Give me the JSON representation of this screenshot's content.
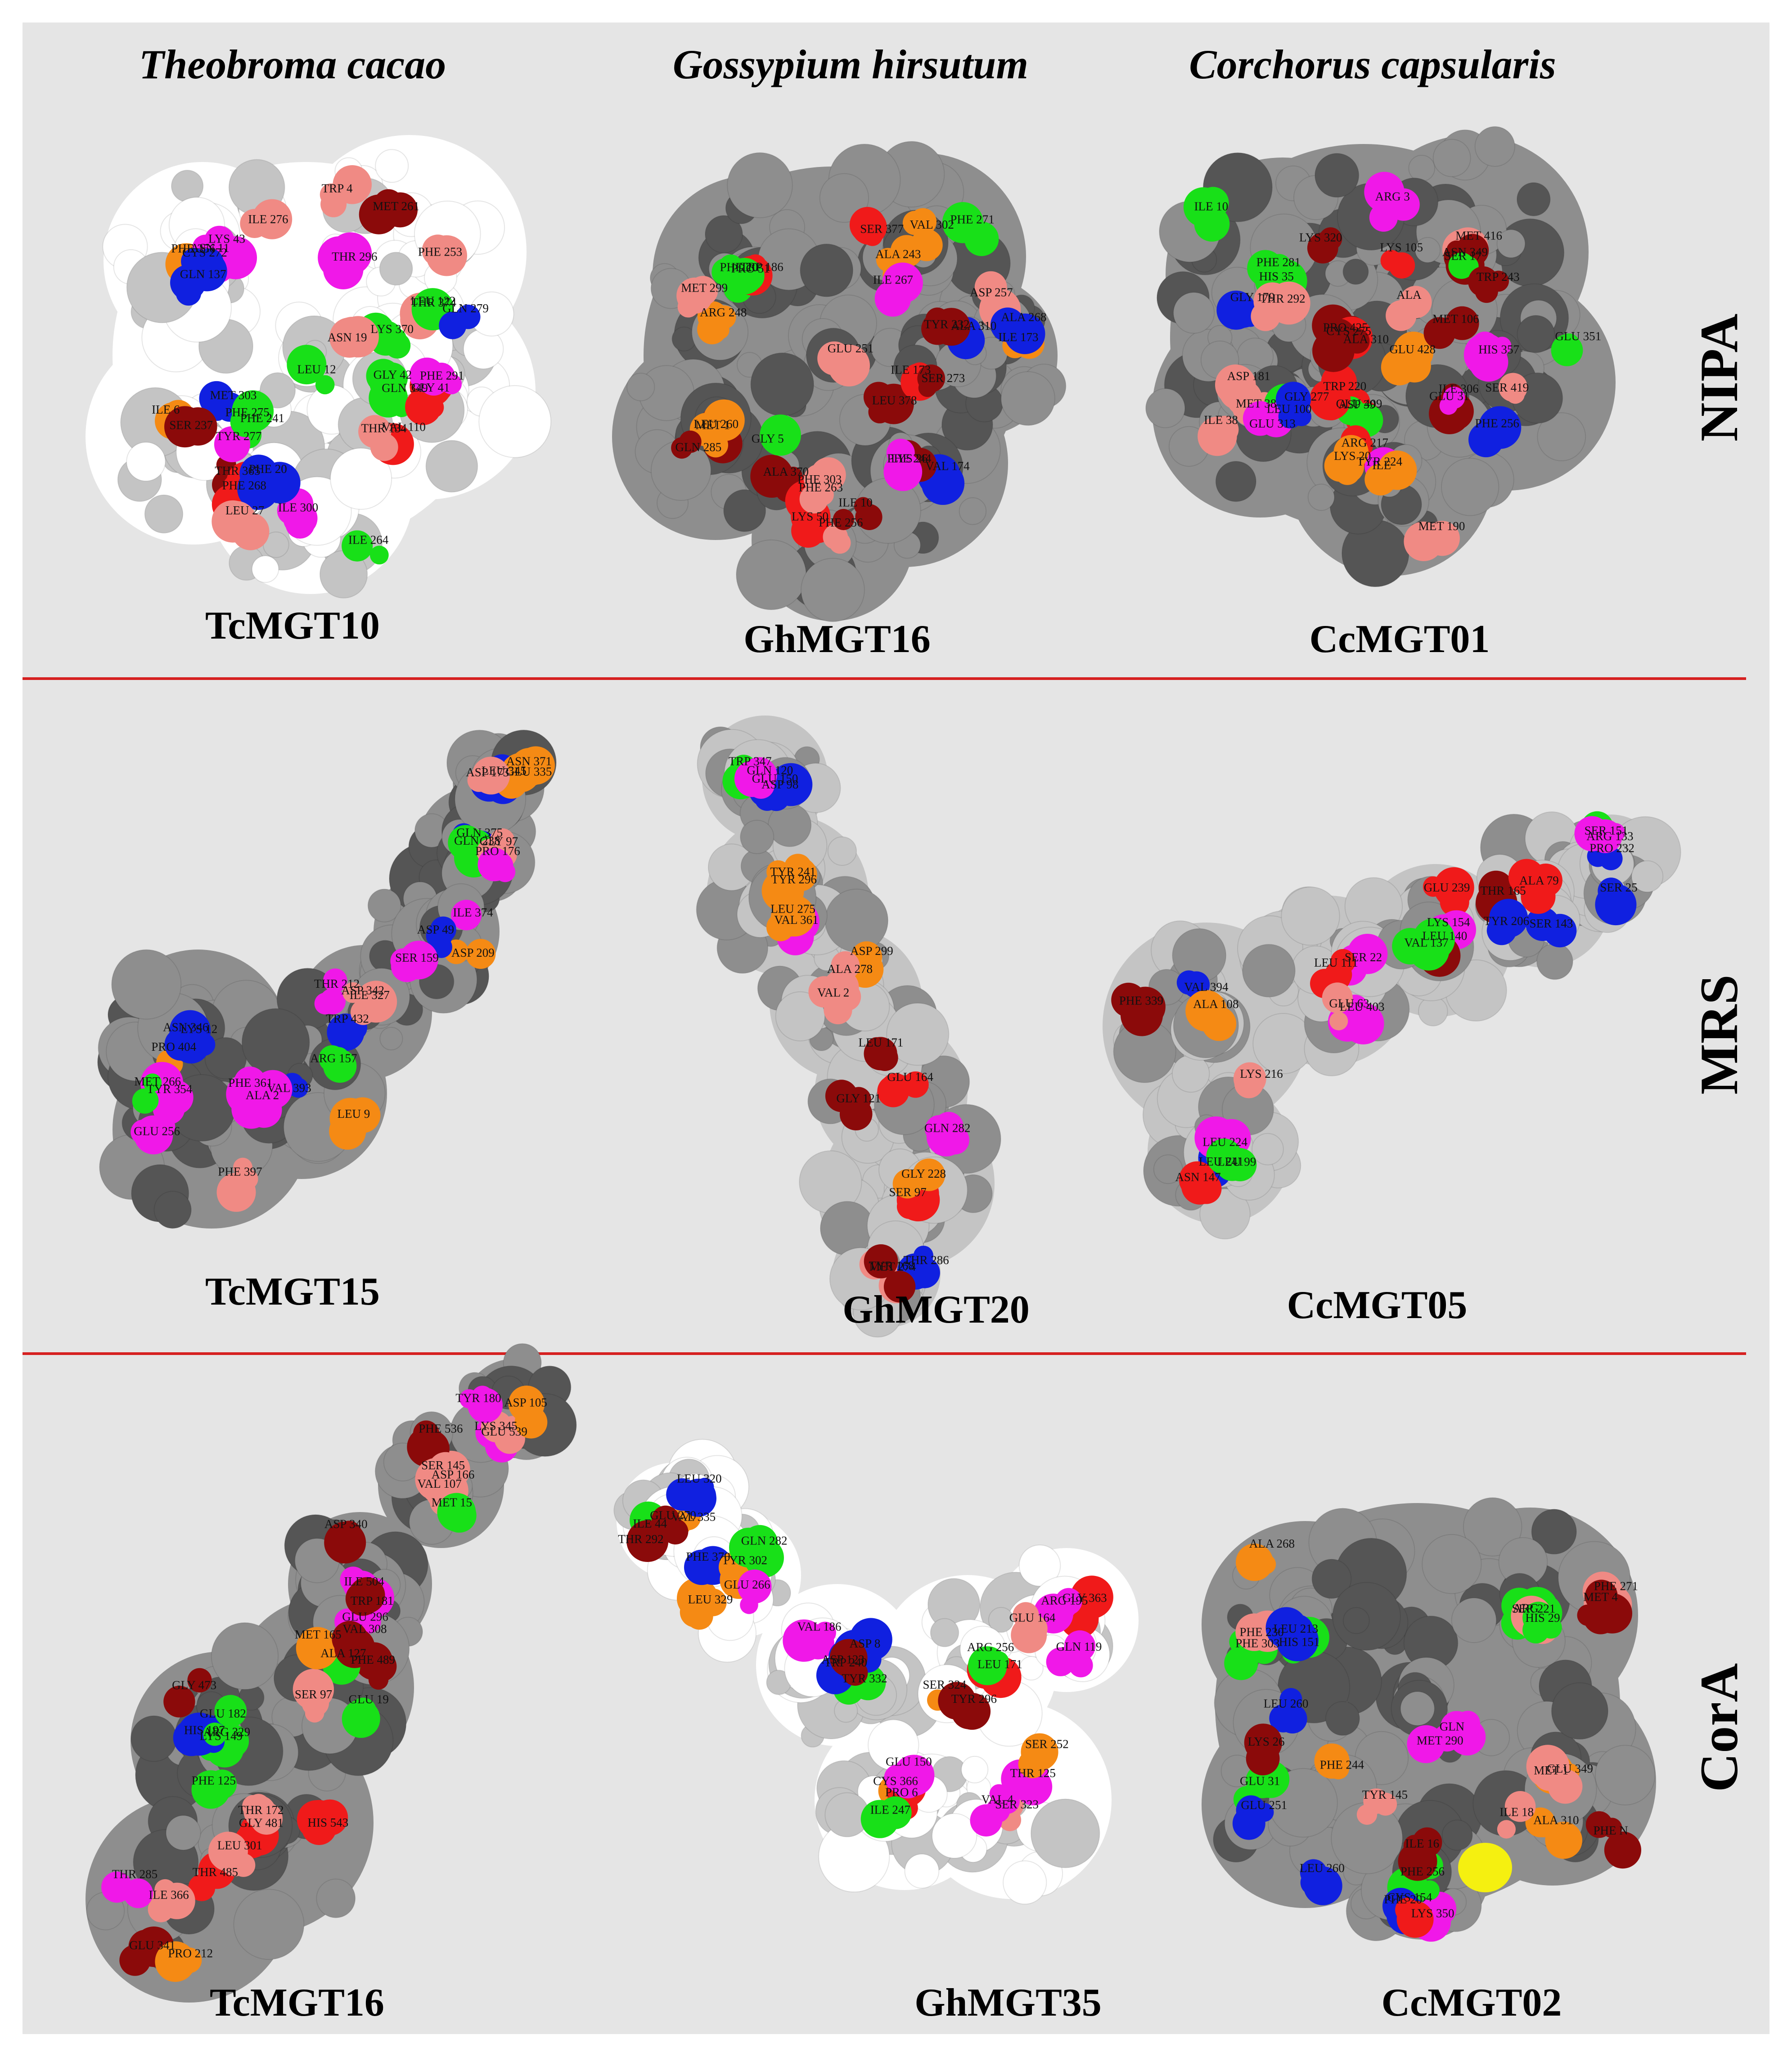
{
  "species": [
    "Theobroma cacao",
    "Gossypium hirsutum",
    "Corchorus capsularis"
  ],
  "rows": [
    {
      "label": "NIPA",
      "structures": [
        {
          "name": "TcMGT10",
          "residues": [
            "LYS 370",
            "PHE 356",
            "TRP 4",
            "THR 374",
            "ILE 6",
            "THR 365",
            "GLN 349",
            "ASN 11",
            "PHE 253",
            "VAL 110",
            "MET 303",
            "ILE 300",
            "LEU 12",
            "LYS 43",
            "MET 261",
            "GLY 42",
            "PHE 241",
            "ILE 264",
            "PHE 268",
            "CYS 272",
            "THR 296",
            "GLY 41",
            "SER 237",
            "PHE 20",
            "ASN 19",
            "ILE 276",
            "LEU 122",
            "PHE 291",
            "TYR 277",
            "LEU 27",
            "PHE 275",
            "GLN 137",
            "GLN 279",
            "THR 134"
          ]
        },
        {
          "name": "GhMGT16",
          "residues": [
            "LEU 378",
            "PRO 51",
            "SER 377",
            "ALA 370",
            "VAL 174",
            "LYS 50",
            "ILE 173",
            "ILE 173",
            "TRP 186",
            "ASP 257",
            "LEU 260",
            "LYS 26",
            "PHE 256",
            "ALA 310",
            "GLU 251",
            "PHE 20",
            "ALA 243",
            "GLY 5",
            "ILE 10",
            "PHE 263",
            "ALA 268",
            "ILE 267",
            "ARG 248",
            "VAL 302",
            "MET 1",
            "PHE 244",
            "PHE 303",
            "TYR 232",
            "SER 273",
            "MET 299",
            "PHE 271",
            "GLN 285"
          ]
        },
        {
          "name": "CcMGT01",
          "residues": [
            "GLU 409",
            "PRO 425",
            "MET 416",
            "SER 419",
            "MET 38",
            "ASP 39",
            "GLU 428",
            "HIS 35",
            "ASN 349",
            "GLU 31",
            "LEU 100",
            "ARG 217",
            "HIS 357",
            "ILE 10",
            "ARG 3",
            "GLU 351",
            "TRP 220",
            "TYR 224",
            "SER 17",
            "GLY 179",
            "LYS 105",
            "MET 106",
            "ILE 38",
            "LYS 20",
            "ASP 181",
            "LYS 320",
            "TRP 243",
            "PHE 256",
            "GLU 313",
            "MET 190",
            "ALA 310",
            "PHE 281",
            "ALA",
            "ILE 306",
            "GLY 277",
            "ILE",
            "CYS 275",
            "THR 292"
          ]
        }
      ]
    },
    {
      "label": "MRS",
      "structures": [
        {
          "name": "TcMGT15",
          "residues": [
            "PRO 404",
            "PHE 397",
            "VAL 393",
            "TRP 432",
            "ILE 374",
            "GLN 375",
            "ASN 371",
            "LYS 12",
            "PHE 361",
            "LEU 9",
            "THR 212",
            "ASP 209",
            "GLN 238",
            "LEU 345",
            "ASN 346",
            "TYR 354",
            "ALA 2",
            "ASP 342",
            "ASP 49",
            "GLY 97",
            "GLU 335",
            "MET 266",
            "GLU 256",
            "ARG 157",
            "ILE 327",
            "SER 159",
            "PRO 176",
            "ASP 173"
          ]
        },
        {
          "name": "GhMGT20",
          "residues": [
            "TRP 347",
            "VAL 361",
            "ASP 299",
            "LEU 171",
            "SER 97",
            "TYR 168",
            "ASP 98",
            "TYR 296",
            "VAL 2",
            "GLU 164",
            "GLN 282",
            "THR 286",
            "GLU 150",
            "LEU 275",
            "ALA 278",
            "GLY 121",
            "GLY 228",
            "MET 274",
            "GLN 120",
            "TYR 241"
          ]
        },
        {
          "name": "CcMGT05",
          "residues": [
            "VAL 394",
            "LEU 241",
            "LEU 403",
            "GLU 239",
            "THR 165",
            "PRO 232",
            "PHE 339",
            "LEU 224",
            "SER 22",
            "LYS 154",
            "SER 143",
            "SER 151",
            "LYS 216",
            "ASN 147",
            "LEU 111",
            "LEU 140",
            "TYR 206",
            "ARG 133",
            "ALA 108",
            "LEU 99",
            "GLU 63",
            "VAL 137",
            "ALA 79",
            "SER 25"
          ]
        }
      ]
    },
    {
      "label": "CorA",
      "structures": [
        {
          "name": "TcMGT16",
          "residues": [
            "THR 485",
            "GLY 481",
            "GLY 473",
            "PHE 489",
            "ILE 504",
            "SER 145",
            "LYS 345",
            "ILE 366",
            "HIS 543",
            "LYS 149",
            "ALA 127",
            "ASP 340",
            "PHE 536",
            "GLU 539",
            "GLU 341",
            "PHE 125",
            "ARG 329",
            "SER 97",
            "GLU 296",
            "VAL 107",
            "ASP 105",
            "THR 285",
            "LEU 301",
            "HIS 197",
            "MET 165",
            "VAL 308",
            "ASP 166",
            "TYR 180",
            "PRO 212",
            "THR 172",
            "GLU 182",
            "GLU 19",
            "TRP 181",
            "MET 15"
          ]
        },
        {
          "name": "GhMGT35",
          "residues": [
            "VAL 335",
            "LEU 329",
            "TYR 332",
            "SER 324",
            "GLY 363",
            "SER 323",
            "CYS 366",
            "LEU 320",
            "PHE 370",
            "VAL 186",
            "LEU 171",
            "ARG 195",
            "VAL 4",
            "PRO 6",
            "ILE 44",
            "TYR 302",
            "ASP 8",
            "TYR 296",
            "GLU 164",
            "THR 125",
            "GLU 150",
            "THR 292",
            "GLN 282",
            "ASP 123",
            "ARG 256",
            "GLN 119",
            "SER 252",
            "ILE 247",
            "GLU 270",
            "GLU 266",
            "TRP 240"
          ]
        },
        {
          "name": "CcMGT02",
          "residues": [
            "MET 290",
            "PHE 303",
            "PHE 271",
            "ALA 310",
            "GLU 31",
            "LYS 350",
            "LEU 260",
            "ALA 268",
            "SER 221",
            "GLU 349",
            "LEU 260",
            "PHE 256",
            "GLN",
            "HIS 151",
            "ARG",
            "PHE N",
            "GLU 251",
            "CYS 154",
            "TYR 145",
            "PHE 230",
            "MET 4",
            "ILE 18",
            "PHE 244",
            "PHE 20",
            "ILE 16",
            "LEU 213",
            "HIS 29",
            "MET 1",
            "LYS 26"
          ]
        }
      ]
    }
  ],
  "colors": {
    "red": "#f01a1a",
    "darkred": "#8b0a0a",
    "blue": "#1020e0",
    "green": "#18e018",
    "magenta": "#f018e8",
    "orange": "#f58a14",
    "salmon": "#f08a84",
    "yellow": "#f5f010",
    "surface_white": "#ffffff",
    "surface_grey": "#8e8e8e",
    "surface_dark": "#555555",
    "surface_light": "#c4c4c4",
    "divider": "#d62020"
  }
}
